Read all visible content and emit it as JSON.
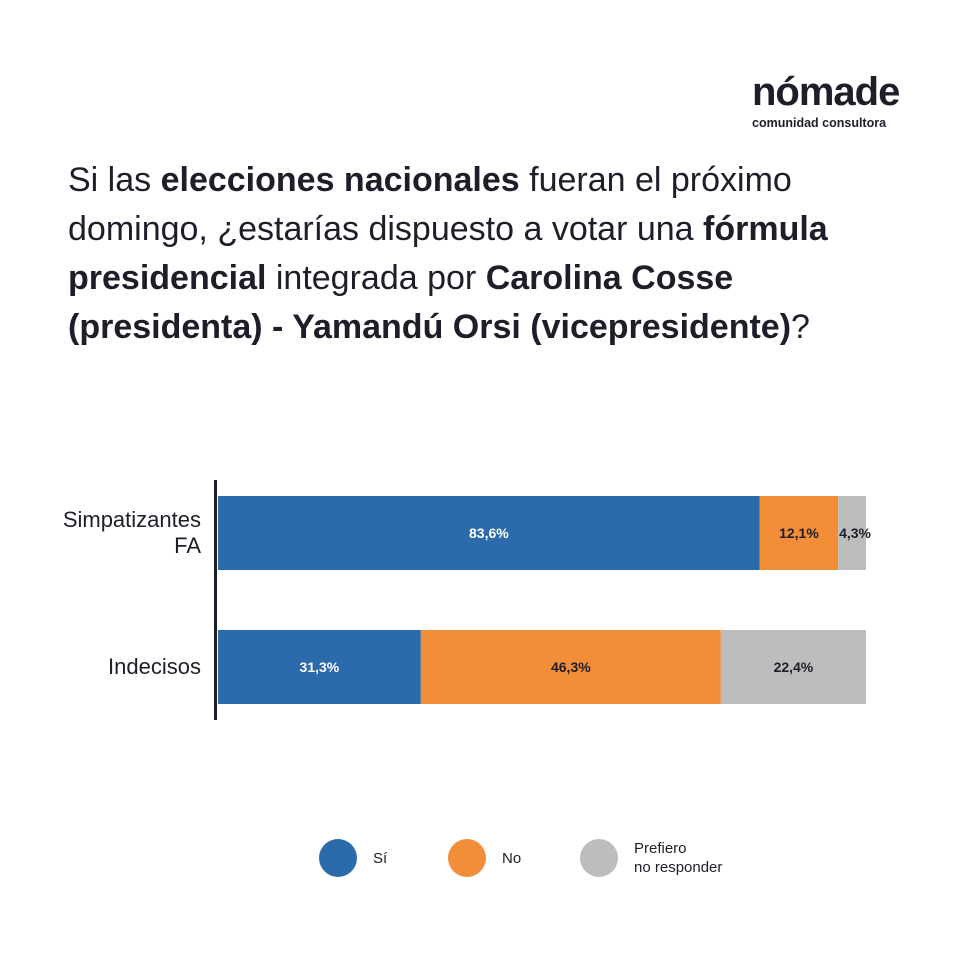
{
  "brand": {
    "name": "nómade",
    "tagline": "comunidad consultora"
  },
  "question": {
    "segments": [
      {
        "text": "Si las ",
        "bold": false
      },
      {
        "text": "elecciones nacionales",
        "bold": true
      },
      {
        "text": " fueran el próximo domingo, ¿estarías dispuesto a votar una ",
        "bold": false
      },
      {
        "text": "fórmula presidencial",
        "bold": true
      },
      {
        "text": " integrada por ",
        "bold": false
      },
      {
        "text": "Carolina Cosse (presidenta) - Yamandú Orsi (vicepresidente)",
        "bold": true
      },
      {
        "text": "?",
        "bold": false
      }
    ]
  },
  "chart_data": {
    "type": "bar",
    "orientation": "horizontal",
    "stacked": true,
    "title": "",
    "xlabel": "",
    "ylabel": "",
    "xlim": [
      0,
      100
    ],
    "grid": false,
    "legend_position": "bottom",
    "categories": [
      "Simpatizantes FA",
      "Indecisos"
    ],
    "series": [
      {
        "name": "Sí",
        "color": "#2b6aab",
        "label_color": "#ffffff",
        "values": [
          83.6,
          31.3
        ],
        "labels": [
          "83,6%",
          "31,3%"
        ]
      },
      {
        "name": "No",
        "color": "#f28d38",
        "label_color": "#1e1e2a",
        "values": [
          12.1,
          46.3
        ],
        "labels": [
          "12,1%",
          "46,3%"
        ]
      },
      {
        "name": "Prefiero no responder",
        "color": "#bebdbd",
        "label_color": "#1e1e2a",
        "values": [
          4.3,
          22.4
        ],
        "labels": [
          "4,3%",
          "22,4%"
        ]
      }
    ]
  },
  "legend": {
    "items": [
      {
        "label": "Sí",
        "color": "#2b6aab"
      },
      {
        "label": "No",
        "color": "#f28d38"
      },
      {
        "label": "Prefiero\nno responder",
        "color": "#bebdbd"
      }
    ]
  }
}
